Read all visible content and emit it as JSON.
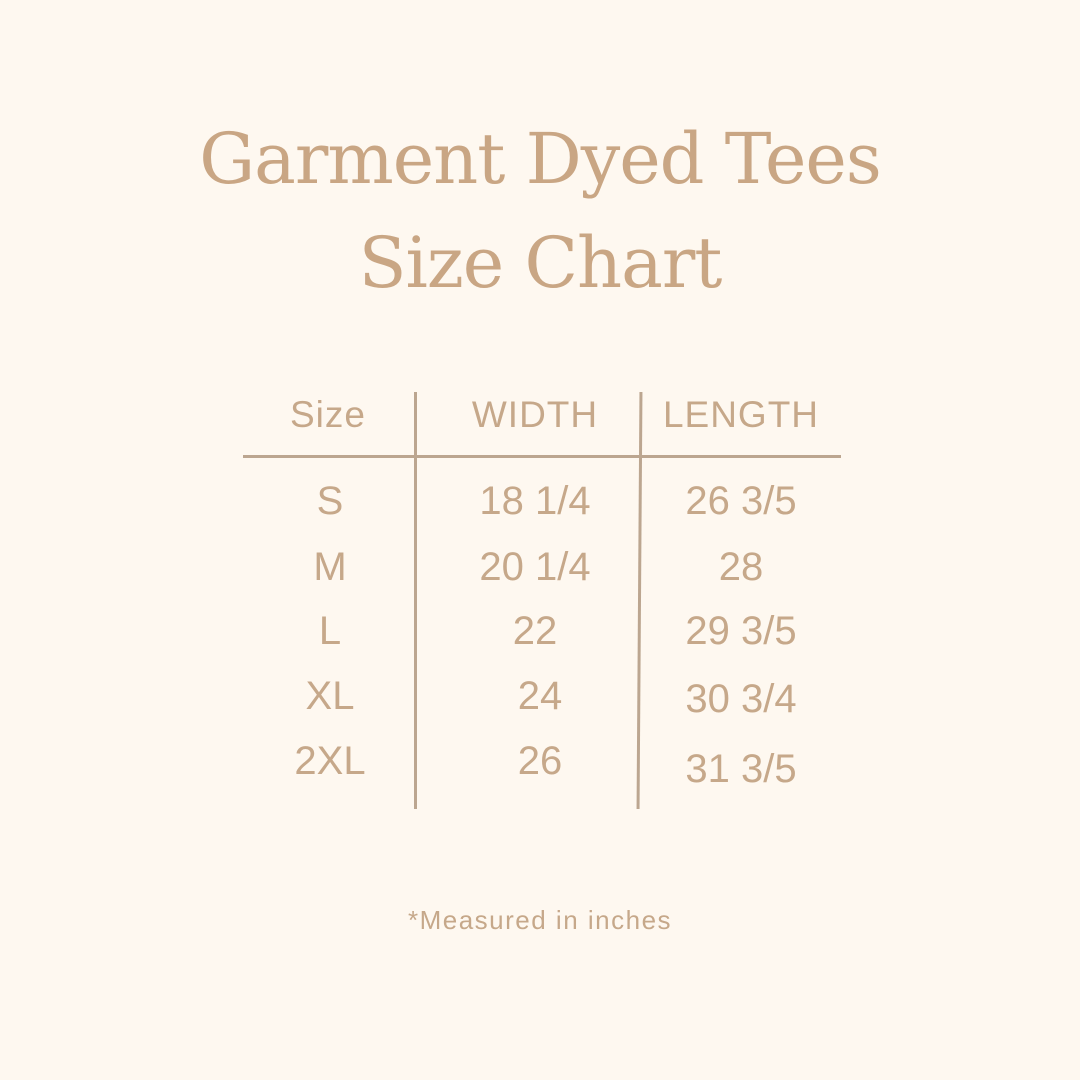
{
  "title": {
    "line1": "Garment Dyed Tees",
    "line2": "Size Chart"
  },
  "table": {
    "headers": [
      "Size",
      "WIDTH",
      "LENGTH"
    ],
    "rows": [
      [
        "S",
        "18 1/4",
        "26 3/5"
      ],
      [
        "M",
        "20 1/4",
        "28"
      ],
      [
        "L",
        "22",
        "29 3/5"
      ],
      [
        "XL",
        "24",
        "30 3/4"
      ],
      [
        "2XL",
        "26",
        "31 3/5"
      ]
    ]
  },
  "note": "*Measured in inches",
  "colors": {
    "background": "#fef8f0",
    "text": "#c6a88a",
    "lines": "#bca690"
  }
}
